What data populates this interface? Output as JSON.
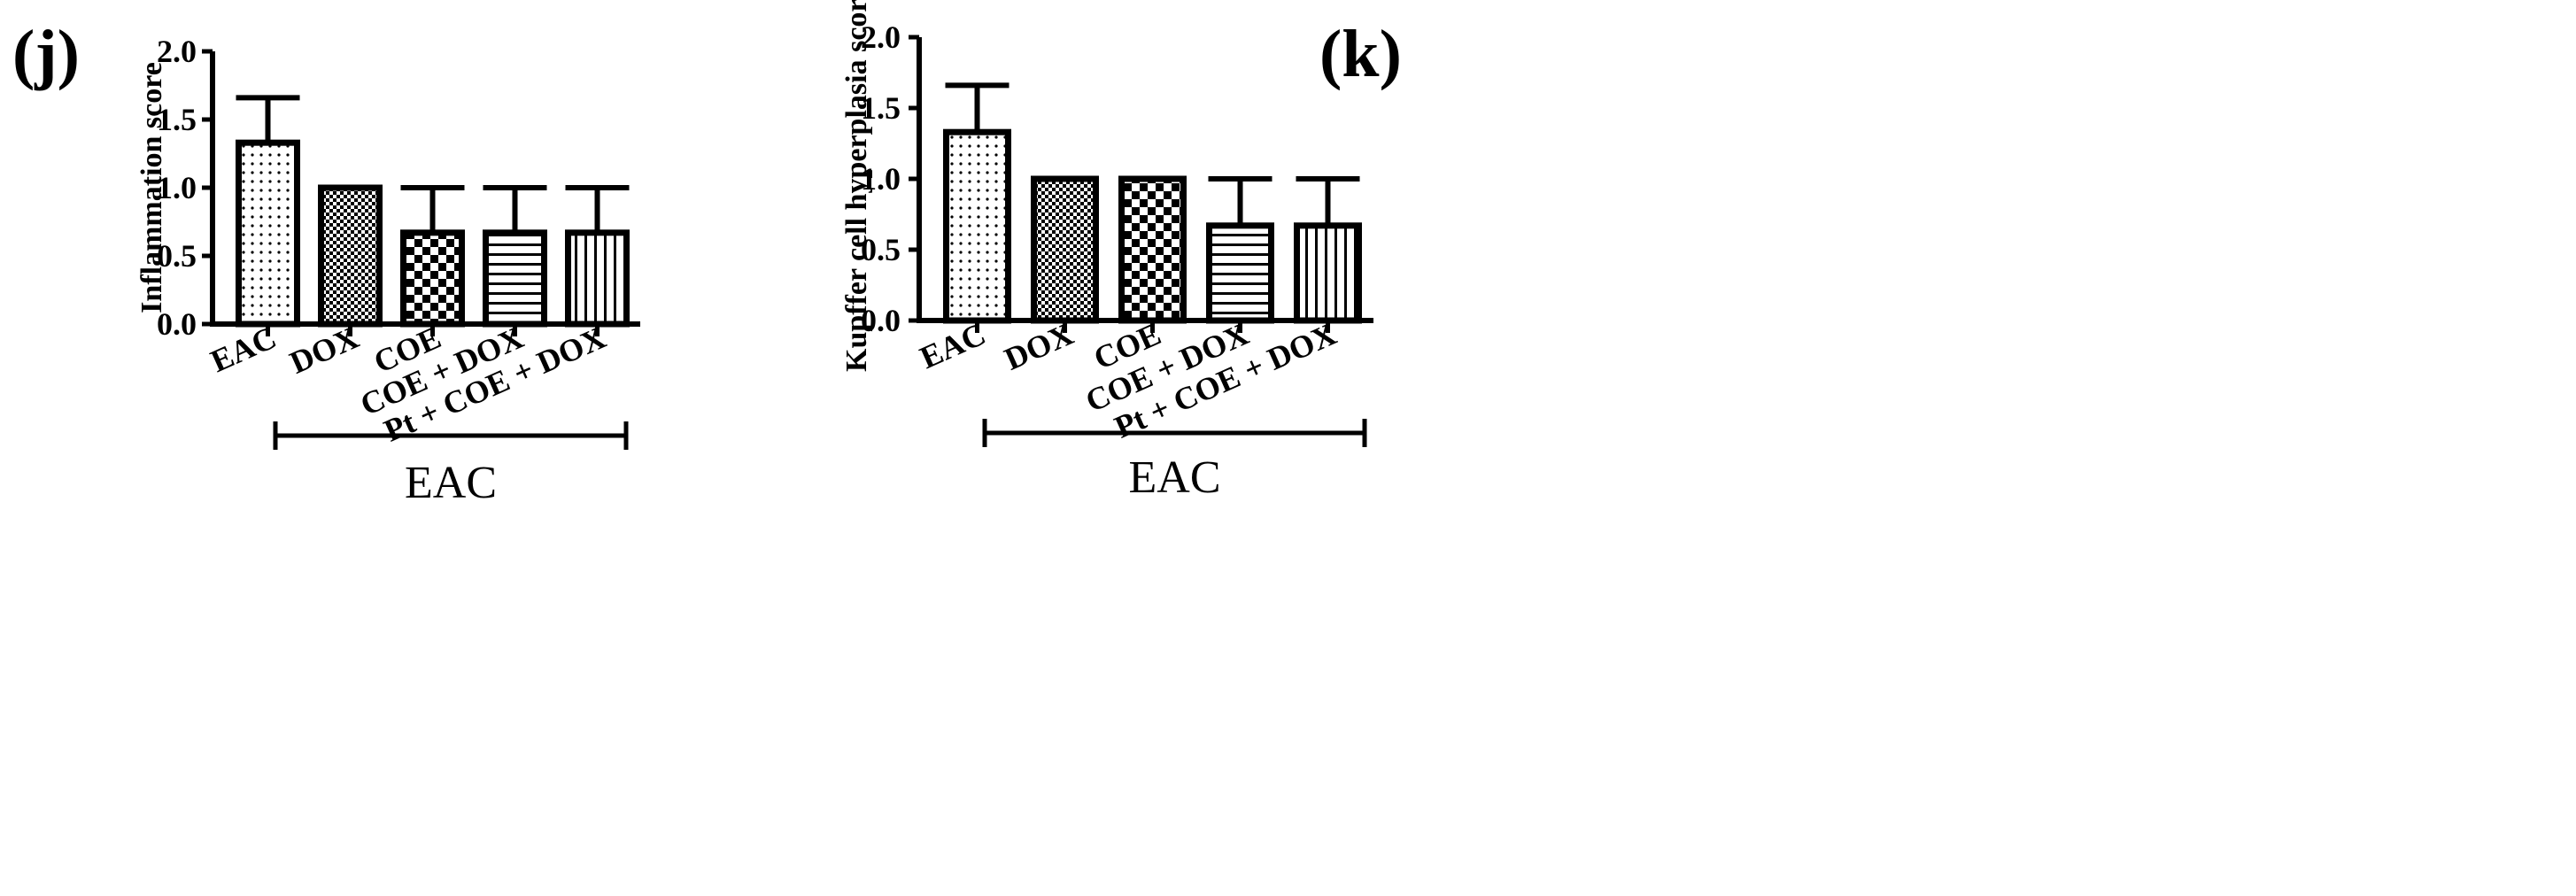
{
  "chart_data": [
    {
      "type": "bar",
      "panel_label": "(j)",
      "title": "",
      "xlabel": "",
      "ylabel": "Inflammation score",
      "ylim": [
        0,
        2.0
      ],
      "yticks": [
        "0.0",
        "0.5",
        "1.0",
        "1.5",
        "2.0"
      ],
      "categories": [
        "EAC",
        "DOX",
        "COE",
        "COE + DOX",
        "Pt + COE + DOX"
      ],
      "values": [
        1.33,
        1.0,
        0.67,
        0.67,
        0.67
      ],
      "errors": [
        0.33,
        0.0,
        0.33,
        0.33,
        0.33
      ],
      "patterns": [
        "dots",
        "fine-check",
        "checker",
        "horizontal",
        "vertical"
      ],
      "group_label": "EAC",
      "group_start": 1,
      "group_end": 4
    },
    {
      "type": "bar",
      "panel_label": "(k)",
      "title": "",
      "xlabel": "",
      "ylabel": "Kupffer cell hyperplasia score",
      "ylim": [
        0,
        2.0
      ],
      "yticks": [
        "0.0",
        "0.5",
        "1.0",
        "1.5",
        "2.0"
      ],
      "categories": [
        "EAC",
        "DOX",
        "COE",
        "COE + DOX",
        "Pt + COE + DOX"
      ],
      "values": [
        1.33,
        1.0,
        1.0,
        0.67,
        0.67
      ],
      "errors": [
        0.33,
        0.0,
        0.0,
        0.33,
        0.33
      ],
      "patterns": [
        "dots",
        "fine-check",
        "checker",
        "horizontal",
        "vertical"
      ],
      "group_label": "EAC",
      "group_start": 1,
      "group_end": 4
    }
  ]
}
